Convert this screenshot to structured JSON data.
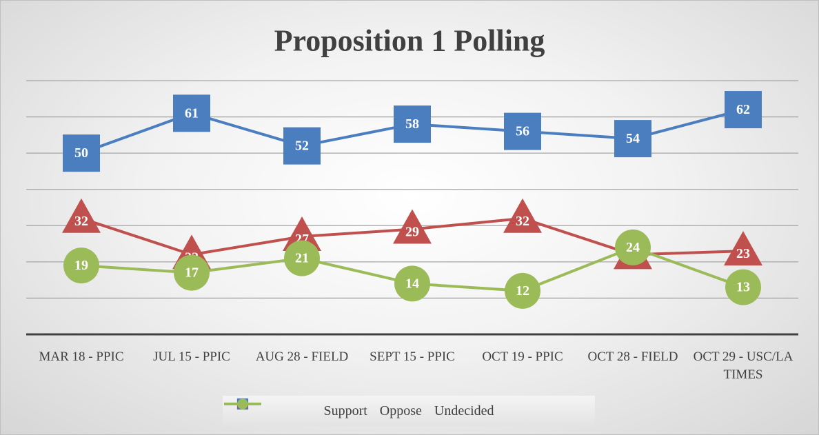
{
  "chart_data": {
    "type": "line",
    "title": "Proposition 1 Polling",
    "categories": [
      "MAR 18 - PPIC",
      "JUL 15 - PPIC",
      "AUG 28 - FIELD",
      "SEPT 15 - PPIC",
      "OCT 19 - PPIC",
      "OCT 28 - FIELD",
      "OCT 29 - USC/LA TIMES"
    ],
    "series": [
      {
        "name": "Support",
        "color": "#4a7ebf",
        "marker": "square",
        "values": [
          50,
          61,
          52,
          58,
          56,
          54,
          62
        ]
      },
      {
        "name": "Oppose",
        "color": "#c0504d",
        "marker": "triangle",
        "values": [
          32,
          22,
          27,
          29,
          32,
          22,
          23
        ]
      },
      {
        "name": "Undecided",
        "color": "#9bbb59",
        "marker": "circle",
        "values": [
          19,
          17,
          21,
          14,
          12,
          24,
          13
        ]
      }
    ],
    "ylim": [
      0,
      70
    ],
    "yticks": [
      0,
      10,
      20,
      30,
      40,
      50,
      60,
      70
    ],
    "grid": true,
    "legend": "bottom"
  }
}
